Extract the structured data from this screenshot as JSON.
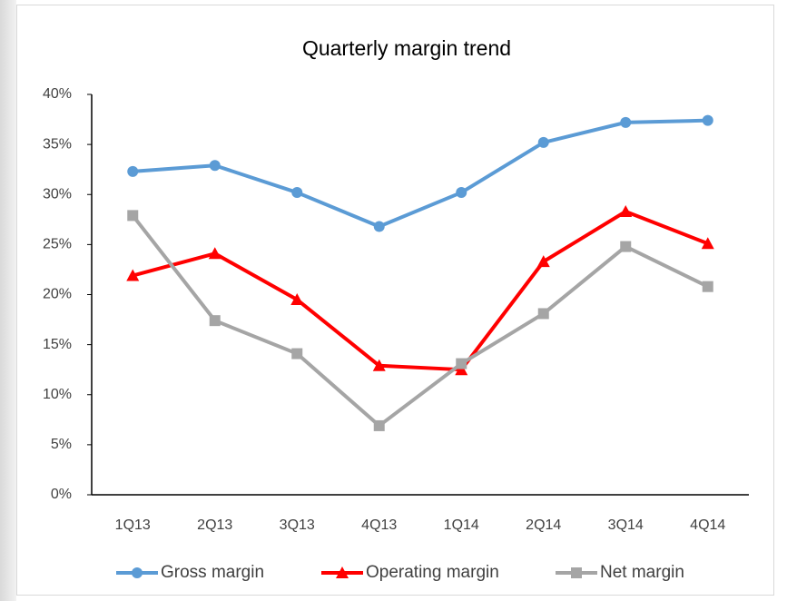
{
  "chart_data": {
    "type": "line",
    "title": "Quarterly margin trend",
    "categories": [
      "1Q13",
      "2Q13",
      "3Q13",
      "4Q13",
      "1Q14",
      "2Q14",
      "3Q14",
      "4Q14"
    ],
    "series": [
      {
        "name": "Gross margin",
        "color": "#5b9bd5",
        "marker": "circle",
        "values": [
          32.3,
          32.9,
          30.2,
          26.8,
          30.2,
          35.2,
          37.2,
          37.4
        ]
      },
      {
        "name": "Operating margin",
        "color": "#ff0000",
        "marker": "triangle",
        "values": [
          21.9,
          24.1,
          19.5,
          12.9,
          12.5,
          23.3,
          28.3,
          25.1
        ]
      },
      {
        "name": "Net margin",
        "color": "#a5a5a5",
        "marker": "square",
        "values": [
          27.9,
          17.4,
          14.1,
          6.9,
          13.1,
          18.1,
          24.8,
          20.8
        ]
      }
    ],
    "ylim": [
      0,
      40
    ],
    "yticks": [
      {
        "value": 0,
        "label": "0%"
      },
      {
        "value": 5,
        "label": "5%"
      },
      {
        "value": 10,
        "label": "10%"
      },
      {
        "value": 15,
        "label": "15%"
      },
      {
        "value": 20,
        "label": "20%"
      },
      {
        "value": 25,
        "label": "25%"
      },
      {
        "value": 30,
        "label": "30%"
      },
      {
        "value": 35,
        "label": "35%"
      },
      {
        "value": 40,
        "label": "40%"
      }
    ],
    "grid": false,
    "legend": "bottom"
  }
}
